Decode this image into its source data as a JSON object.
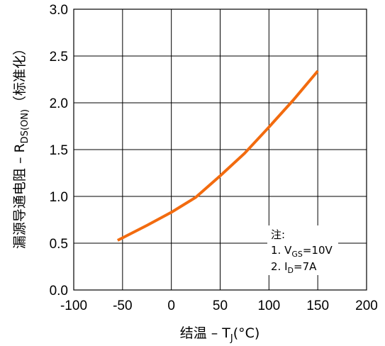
{
  "chart_data": {
    "type": "line",
    "xlabel": {
      "main": "结温  –  T",
      "sub": "J",
      "tail": "(°C)"
    },
    "ylabel": {
      "main": "漏源导通电阻  –  R",
      "sub": "DS(ON)",
      "tail": "（标准化）"
    },
    "xlim": [
      -100,
      200
    ],
    "ylim": [
      0.0,
      3.0
    ],
    "x_ticks": [
      "-100",
      "-50",
      "0",
      "50",
      "100",
      "150",
      "200"
    ],
    "y_ticks": [
      "0.0",
      "0.5",
      "1.0",
      "1.5",
      "2.0",
      "2.5",
      "3.0"
    ],
    "grid": true,
    "series_color": "#f26b0f",
    "series": [
      {
        "x": [
          -55,
          -25,
          0,
          25,
          50,
          75,
          100,
          125,
          150
        ],
        "values": [
          0.53,
          0.69,
          0.83,
          0.99,
          1.22,
          1.46,
          1.74,
          2.03,
          2.34
        ]
      }
    ],
    "annotation": {
      "title": "注:",
      "line1": {
        "pre": "1. V",
        "sub": "GS",
        "post": "=10V"
      },
      "line2": {
        "pre": "2. I",
        "sub": "D",
        "post": "=7A"
      }
    }
  }
}
